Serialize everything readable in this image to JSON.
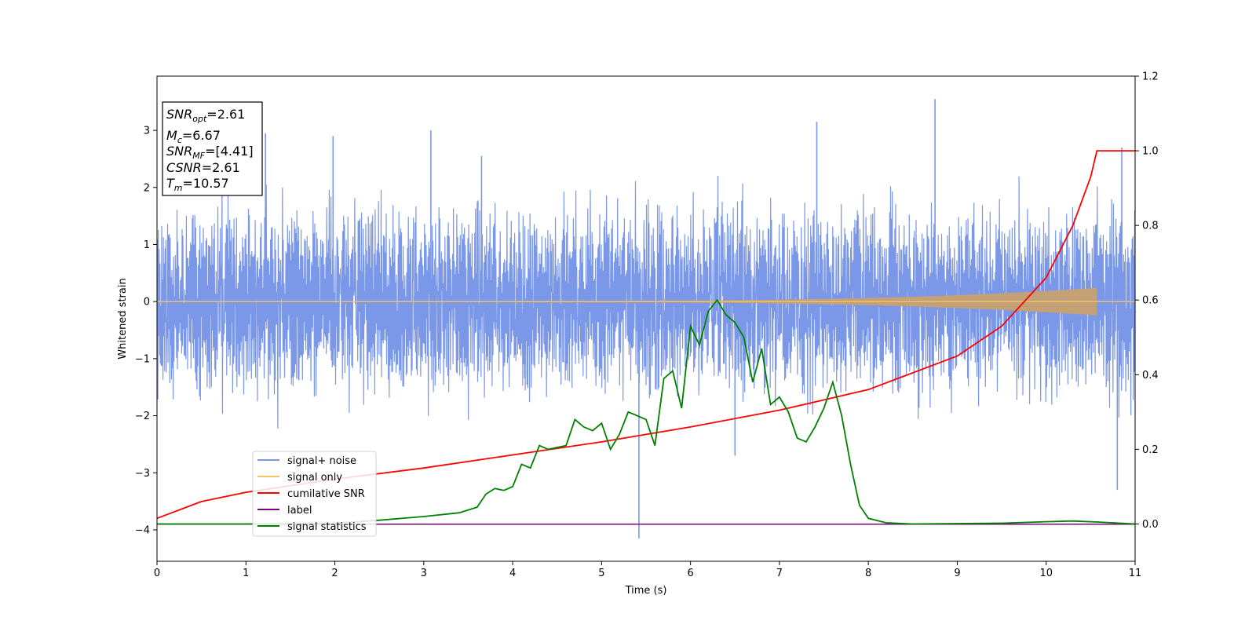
{
  "chart_data": {
    "type": "line",
    "xlabel": "Time (s)",
    "ylabel": "Whitened strain",
    "xlim": [
      0,
      11
    ],
    "ylim": [
      -4.55,
      3.95
    ],
    "y2lim": [
      -0.1,
      1.2
    ],
    "xticks": [
      "0",
      "1",
      "2",
      "3",
      "4",
      "5",
      "6",
      "7",
      "8",
      "9",
      "10",
      "11"
    ],
    "yticks": [
      "−4",
      "−3",
      "−2",
      "−1",
      "0",
      "1",
      "2",
      "3"
    ],
    "y2ticks": [
      "0.0",
      "0.2",
      "0.4",
      "0.6",
      "0.8",
      "1.0",
      "1.2"
    ],
    "legend_position": "lower-left",
    "colors": {
      "signal_noise": "#7b97e8",
      "signal_only": "#f5c36b",
      "signal_fill": "#c4a076",
      "cumulative_snr": "#ff0000",
      "label": "#800080",
      "signal_statistics": "#008000"
    },
    "series": [
      {
        "name": "signal+ noise",
        "axis": "left",
        "style": "noise band, envelope about ±1.5 with spikes to 3.55 and −4.15",
        "peaks": [
          [
            1.22,
            2.95
          ],
          [
            1.98,
            2.9
          ],
          [
            3.08,
            3.0
          ],
          [
            3.65,
            2.55
          ],
          [
            7.42,
            3.15
          ],
          [
            8.75,
            3.55
          ],
          [
            10.85,
            2.7
          ],
          [
            5.42,
            -4.15
          ],
          [
            10.8,
            -3.3
          ],
          [
            6.5,
            -2.7
          ]
        ]
      },
      {
        "name": "signal only",
        "axis": "left",
        "style": "chirp, amplitude growing to about 0.25 at 10.57 s, then zero"
      },
      {
        "name": "cumilative SNR",
        "axis": "right",
        "points": [
          [
            0,
            0.015
          ],
          [
            0.5,
            0.06
          ],
          [
            1,
            0.085
          ],
          [
            2,
            0.12
          ],
          [
            3,
            0.15
          ],
          [
            4,
            0.185
          ],
          [
            5,
            0.22
          ],
          [
            6,
            0.26
          ],
          [
            7,
            0.305
          ],
          [
            8,
            0.36
          ],
          [
            9,
            0.45
          ],
          [
            9.5,
            0.53
          ],
          [
            10,
            0.66
          ],
          [
            10.3,
            0.8
          ],
          [
            10.5,
            0.93
          ],
          [
            10.57,
            1.0
          ],
          [
            11,
            1.0
          ]
        ]
      },
      {
        "name": "label",
        "axis": "left",
        "points": [
          [
            0,
            -3.9
          ],
          [
            11,
            -3.9
          ]
        ]
      },
      {
        "name": "signal statistics",
        "axis": "right",
        "points": [
          [
            0,
            0.0
          ],
          [
            1,
            0.0
          ],
          [
            2,
            0.002
          ],
          [
            2.5,
            0.01
          ],
          [
            3,
            0.02
          ],
          [
            3.4,
            0.03
          ],
          [
            3.6,
            0.045
          ],
          [
            3.7,
            0.08
          ],
          [
            3.8,
            0.095
          ],
          [
            3.9,
            0.09
          ],
          [
            4.0,
            0.1
          ],
          [
            4.1,
            0.16
          ],
          [
            4.2,
            0.15
          ],
          [
            4.3,
            0.21
          ],
          [
            4.4,
            0.2
          ],
          [
            4.6,
            0.21
          ],
          [
            4.7,
            0.28
          ],
          [
            4.8,
            0.26
          ],
          [
            4.9,
            0.25
          ],
          [
            5.0,
            0.27
          ],
          [
            5.1,
            0.2
          ],
          [
            5.2,
            0.24
          ],
          [
            5.3,
            0.3
          ],
          [
            5.4,
            0.29
          ],
          [
            5.5,
            0.28
          ],
          [
            5.6,
            0.21
          ],
          [
            5.7,
            0.39
          ],
          [
            5.8,
            0.41
          ],
          [
            5.9,
            0.31
          ],
          [
            6.0,
            0.53
          ],
          [
            6.1,
            0.48
          ],
          [
            6.2,
            0.57
          ],
          [
            6.3,
            0.6
          ],
          [
            6.4,
            0.56
          ],
          [
            6.5,
            0.54
          ],
          [
            6.6,
            0.5
          ],
          [
            6.7,
            0.38
          ],
          [
            6.8,
            0.47
          ],
          [
            6.9,
            0.32
          ],
          [
            7.0,
            0.34
          ],
          [
            7.1,
            0.3
          ],
          [
            7.2,
            0.23
          ],
          [
            7.3,
            0.22
          ],
          [
            7.4,
            0.26
          ],
          [
            7.5,
            0.31
          ],
          [
            7.6,
            0.38
          ],
          [
            7.7,
            0.29
          ],
          [
            7.8,
            0.16
          ],
          [
            7.9,
            0.05
          ],
          [
            8.0,
            0.015
          ],
          [
            8.2,
            0.003
          ],
          [
            8.5,
            0.0
          ],
          [
            9.5,
            0.002
          ],
          [
            10.0,
            0.006
          ],
          [
            10.3,
            0.008
          ],
          [
            10.6,
            0.005
          ],
          [
            11,
            0.0
          ]
        ]
      }
    ],
    "annotation": [
      {
        "main": "SNR",
        "sub": "opt",
        "rest": "=2.61"
      },
      {
        "main": "M",
        "sub": "c",
        "rest": "=6.67"
      },
      {
        "main": "SNR",
        "sub": "MF",
        "rest": "=[4.41]"
      },
      {
        "main": "CSNR",
        "sub": "",
        "rest": "=2.61"
      },
      {
        "main": "T",
        "sub": "m",
        "rest": "=10.57"
      }
    ]
  }
}
